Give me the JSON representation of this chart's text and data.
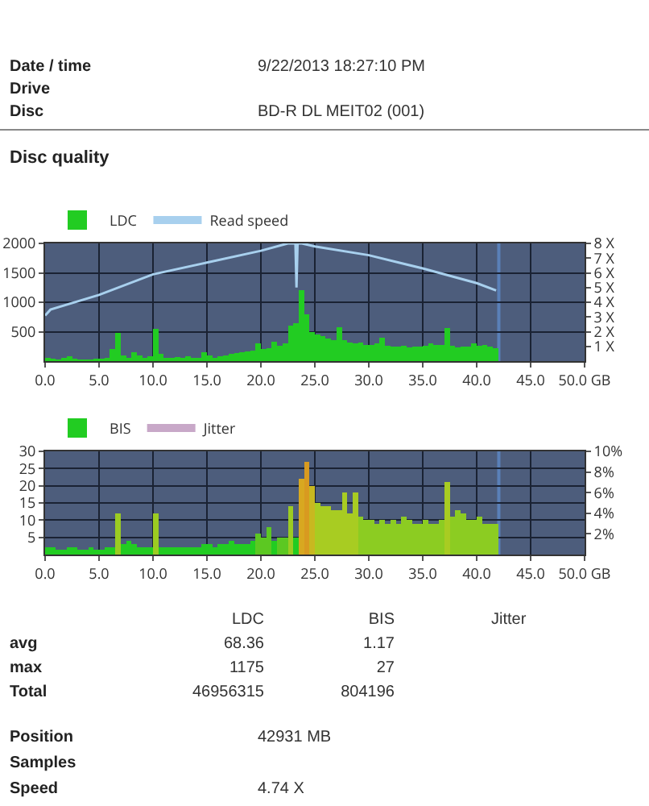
{
  "chart_data": [
    {
      "type": "bar",
      "title": "Disc quality",
      "annotations": [
        "Date / time",
        "9/22/2013 18:27:10 PM",
        "Drive",
        "Disc",
        "BD-R DL MEIT02 (001)"
      ],
      "x": [
        0,
        0.5,
        1,
        1.5,
        2,
        2.5,
        3,
        3.5,
        4,
        4.5,
        5,
        5.5,
        6,
        6.5,
        7,
        7.5,
        8,
        8.5,
        9,
        9.5,
        10,
        10.5,
        11,
        11.5,
        12,
        12.5,
        13,
        13.5,
        14,
        14.5,
        15,
        15.5,
        16,
        16.5,
        17,
        17.5,
        18,
        18.5,
        19,
        19.5,
        20,
        20.5,
        21,
        21.5,
        22,
        22.5,
        23,
        23.5,
        24,
        24.5,
        25,
        25.5,
        26,
        26.5,
        27,
        27.5,
        28,
        28.5,
        29,
        29.5,
        30,
        30.5,
        31,
        31.5,
        32,
        32.5,
        33,
        33.5,
        34,
        34.5,
        35,
        35.5,
        36,
        36.5,
        37,
        37.5,
        38,
        38.5,
        39,
        39.5,
        40,
        40.5,
        41,
        41.5
      ],
      "series": [
        {
          "name": "LDC",
          "color": "#22cc22",
          "values": [
            60,
            40,
            30,
            50,
            80,
            40,
            30,
            30,
            30,
            40,
            40,
            60,
            200,
            480,
            100,
            60,
            150,
            90,
            60,
            80,
            550,
            120,
            60,
            60,
            70,
            60,
            80,
            60,
            60,
            150,
            90,
            60,
            80,
            100,
            120,
            140,
            150,
            160,
            180,
            300,
            200,
            220,
            330,
            260,
            300,
            600,
            650,
            1200,
            800,
            500,
            450,
            420,
            380,
            360,
            580,
            350,
            320,
            300,
            310,
            280,
            270,
            300,
            400,
            260,
            250,
            240,
            260,
            230,
            240,
            250,
            260,
            300,
            280,
            270,
            560,
            260,
            230,
            240,
            250,
            300,
            260,
            280,
            250,
            220
          ]
        },
        {
          "name": "Read speed",
          "type": "line",
          "axis": "y2",
          "color": "#a8d0ee",
          "x": [
            0,
            0.5,
            5,
            10,
            15,
            20,
            22.5,
            23.2,
            23.3,
            23.4,
            23.8,
            25,
            30,
            35,
            40,
            41.8
          ],
          "values": [
            3.1,
            3.5,
            4.5,
            5.9,
            6.7,
            7.5,
            8,
            8,
            5,
            8,
            8,
            7.8,
            7.2,
            6.3,
            5.3,
            4.8
          ]
        }
      ],
      "xlim": [
        0,
        50
      ],
      "xticks": [
        {
          "value": 0,
          "label": "0.0"
        },
        {
          "value": 5,
          "label": "5.0"
        },
        {
          "value": 10,
          "label": "10.0"
        },
        {
          "value": 15,
          "label": "15.0"
        },
        {
          "value": 20,
          "label": "20.0"
        },
        {
          "value": 25,
          "label": "25.0"
        },
        {
          "value": 30,
          "label": "30.0"
        },
        {
          "value": 35,
          "label": "35.0"
        },
        {
          "value": 40,
          "label": "40.0"
        },
        {
          "value": 45,
          "label": "45.0"
        },
        {
          "value": 50,
          "label": "50.0 GB"
        }
      ],
      "ylim": [
        0,
        2000
      ],
      "yticks": [
        500,
        1000,
        1500,
        2000
      ],
      "y2lim": [
        0,
        8
      ],
      "y2ticks": [
        {
          "value": 1,
          "label": "1 X"
        },
        {
          "value": 2,
          "label": "2 X"
        },
        {
          "value": 3,
          "label": "3 X"
        },
        {
          "value": 4,
          "label": "4 X"
        },
        {
          "value": 5,
          "label": "5 X"
        },
        {
          "value": 6,
          "label": "6 X"
        },
        {
          "value": 7,
          "label": "7 X"
        },
        {
          "value": 8,
          "label": "8 X"
        }
      ],
      "bands": [
        {
          "axis": "x",
          "from": 41.9,
          "to": 42.2,
          "color": "#5a80b8"
        }
      ],
      "grid": true,
      "legend": "top left"
    },
    {
      "type": "bar",
      "annotations": [
        "LDC",
        "BIS",
        "Jitter",
        "avg",
        "68.36",
        "1.17",
        "max",
        "1175",
        "27",
        "Total",
        "46956315",
        "804196",
        "Position",
        "42931 MB",
        "Samples",
        "Speed",
        "4.74 X"
      ],
      "x": [
        0,
        0.5,
        1,
        1.5,
        2,
        2.5,
        3,
        3.5,
        4,
        4.5,
        5,
        5.5,
        6,
        6.5,
        7,
        7.5,
        8,
        8.5,
        9,
        9.5,
        10,
        10.5,
        11,
        11.5,
        12,
        12.5,
        13,
        13.5,
        14,
        14.5,
        15,
        15.5,
        16,
        16.5,
        17,
        17.5,
        18,
        18.5,
        19,
        19.5,
        20,
        20.5,
        21,
        21.5,
        22,
        22.5,
        23,
        23.5,
        24,
        24.5,
        25,
        25.5,
        26,
        26.5,
        27,
        27.5,
        28,
        28.5,
        29,
        29.5,
        30,
        30.5,
        31,
        31.5,
        32,
        32.5,
        33,
        33.5,
        34,
        34.5,
        35,
        35.5,
        36,
        36.5,
        37,
        37.5,
        38,
        38.5,
        39,
        39.5,
        40,
        40.5,
        41,
        41.5
      ],
      "series": [
        {
          "name": "BIS",
          "values": [
            2,
            2,
            1.5,
            1.5,
            2,
            2,
            1.5,
            1.5,
            2,
            1.5,
            1.5,
            2,
            2,
            12,
            3,
            4,
            3,
            2,
            2,
            2,
            12,
            2,
            2,
            2,
            2,
            2,
            2,
            2,
            2,
            3,
            3,
            2,
            3,
            3,
            4,
            3,
            3,
            3,
            4,
            6,
            5,
            8,
            4,
            5,
            5,
            14,
            5,
            22,
            27,
            20,
            15,
            14,
            14,
            13,
            13,
            18,
            12,
            18,
            11,
            10,
            10,
            9,
            10,
            9,
            10,
            9,
            11,
            10,
            9,
            9,
            10,
            9,
            9,
            10,
            21,
            11,
            13,
            12,
            10,
            10,
            11,
            9,
            9,
            9
          ],
          "colors": [
            "#22cc22",
            "#22cc22",
            "#22cc22",
            "#22cc22",
            "#22cc22",
            "#22cc22",
            "#22cc22",
            "#22cc22",
            "#22cc22",
            "#22cc22",
            "#22cc22",
            "#22cc22",
            "#22cc22",
            "#9ccc22",
            "#22cc22",
            "#22cc22",
            "#22cc22",
            "#22cc22",
            "#22cc22",
            "#22cc22",
            "#9ccc22",
            "#22cc22",
            "#22cc22",
            "#22cc22",
            "#22cc22",
            "#22cc22",
            "#22cc22",
            "#22cc22",
            "#22cc22",
            "#22cc22",
            "#22cc22",
            "#22cc22",
            "#22cc22",
            "#22cc22",
            "#22cc22",
            "#22cc22",
            "#22cc22",
            "#22cc22",
            "#22cc22",
            "#5cc822",
            "#5cc822",
            "#5cc822",
            "#22cc22",
            "#5cc822",
            "#5cc822",
            "#9ccc22",
            "#22cc22",
            "#d8a820",
            "#d89a20",
            "#c8b820",
            "#a8cc22",
            "#a8cc22",
            "#a8cc22",
            "#a8cc22",
            "#a8cc22",
            "#a8cc22",
            "#a8cc22",
            "#a8cc22",
            "#8ccc22",
            "#8ccc22",
            "#8ccc22",
            "#8ccc22",
            "#8ccc22",
            "#8ccc22",
            "#8ccc22",
            "#8ccc22",
            "#8ccc22",
            "#8ccc22",
            "#8ccc22",
            "#8ccc22",
            "#8ccc22",
            "#8ccc22",
            "#8ccc22",
            "#8ccc22",
            "#a8cc22",
            "#8ccc22",
            "#8ccc22",
            "#8ccc22",
            "#8ccc22",
            "#8ccc22",
            "#8ccc22",
            "#8ccc22",
            "#8ccc22",
            "#8ccc22"
          ]
        },
        {
          "name": "Jitter",
          "type": "line",
          "axis": "y2",
          "color": "#c8a8c8",
          "values": [
            null,
            null,
            null,
            null,
            null,
            null,
            null,
            null,
            null,
            null,
            null,
            null,
            null,
            null,
            null,
            null,
            null,
            null,
            null,
            null,
            null,
            null,
            null,
            null,
            null,
            null,
            null,
            null,
            null,
            null,
            null,
            null,
            null,
            null,
            null,
            null,
            null,
            null,
            null,
            null,
            null,
            null,
            null,
            null,
            null,
            null,
            null,
            null,
            null,
            null,
            null,
            null,
            null,
            null,
            null,
            null,
            null,
            null,
            null,
            null,
            null,
            null,
            null,
            null,
            null,
            null,
            null,
            null,
            null,
            null,
            null,
            null,
            null,
            null,
            null,
            null,
            null,
            null,
            null,
            null,
            null,
            null,
            null,
            null
          ]
        }
      ],
      "xlim": [
        0,
        50
      ],
      "xticks": [
        {
          "value": 0,
          "label": "0.0"
        },
        {
          "value": 5,
          "label": "5.0"
        },
        {
          "value": 10,
          "label": "10.0"
        },
        {
          "value": 15,
          "label": "15.0"
        },
        {
          "value": 20,
          "label": "20.0"
        },
        {
          "value": 25,
          "label": "25.0"
        },
        {
          "value": 30,
          "label": "30.0"
        },
        {
          "value": 35,
          "label": "35.0"
        },
        {
          "value": 40,
          "label": "40.0"
        },
        {
          "value": 45,
          "label": "45.0"
        },
        {
          "value": 50,
          "label": "50.0 GB"
        }
      ],
      "ylim": [
        0,
        30
      ],
      "yticks": [
        5,
        10,
        15,
        20,
        25,
        30
      ],
      "y2lim": [
        0,
        10
      ],
      "y2ticks": [
        {
          "value": 2,
          "label": "2%"
        },
        {
          "value": 4,
          "label": "4%"
        },
        {
          "value": 6,
          "label": "6%"
        },
        {
          "value": 8,
          "label": "8%"
        },
        {
          "value": 10,
          "label": "10%"
        }
      ],
      "bands": [
        {
          "axis": "x",
          "from": 41.9,
          "to": 42.2,
          "color": "#5a80b8"
        }
      ],
      "grid": true,
      "legend": "top left"
    }
  ]
}
